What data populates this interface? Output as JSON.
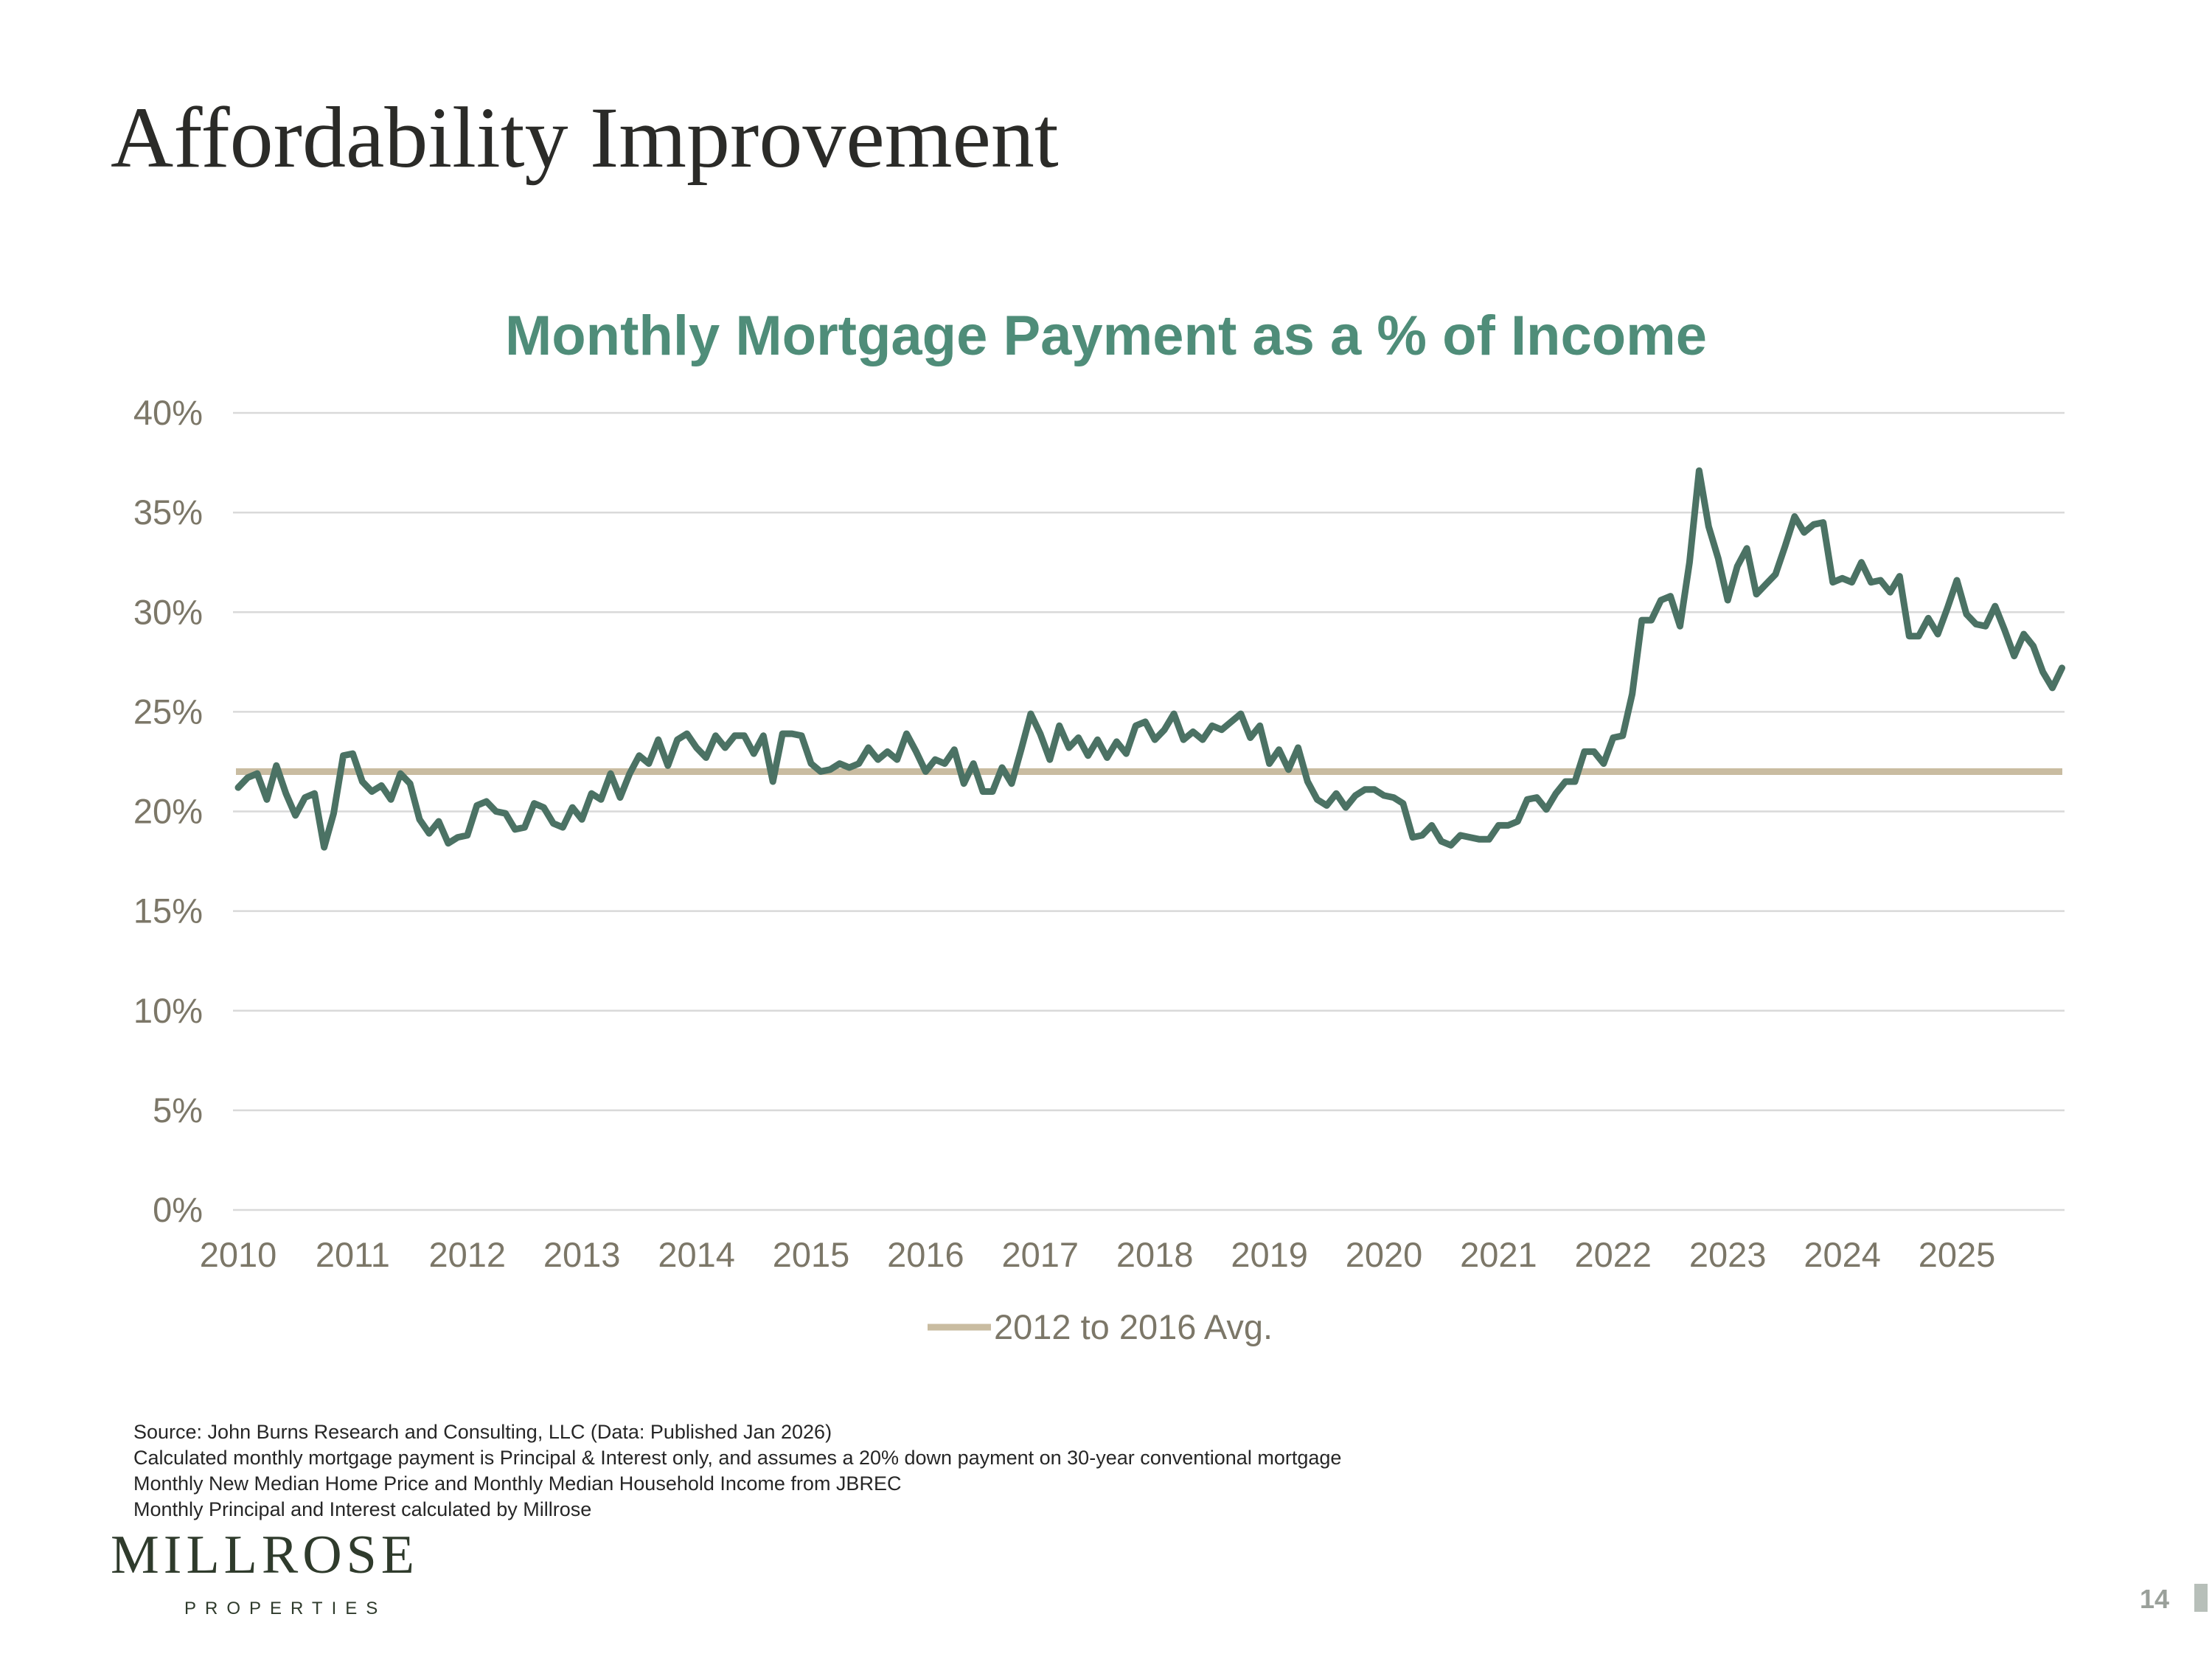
{
  "slide": {
    "title": "Affordability Improvement",
    "page_number": "14"
  },
  "footnotes": [
    "Source: John Burns Research and Consulting, LLC (Data: Published Jan 2026)",
    "Calculated monthly mortgage payment is Principal & Interest only, and assumes a 20% down payment on 30-year conventional mortgage",
    "Monthly New Median Home Price and Monthly Median Household Income from JBREC",
    "Monthly Principal and Interest calculated by Millrose"
  ],
  "logo": {
    "name": "MILLROSE",
    "sub": "PROPERTIES"
  },
  "colors": {
    "title_green": "#4f8d79",
    "series_line": "#4b7264",
    "avg_line": "#c9bca1",
    "grid": "#d9d9d9",
    "axis_text": "#7c7768"
  },
  "chart_data": {
    "type": "line",
    "title": "Monthly Mortgage Payment as a % of Income",
    "xlabel": "",
    "ylabel": "",
    "x_tick_labels": [
      "2010",
      "2011",
      "2012",
      "2013",
      "2014",
      "2015",
      "2016",
      "2017",
      "2018",
      "2019",
      "2020",
      "2021",
      "2022",
      "2023",
      "2024",
      "2025"
    ],
    "y_tick_labels": [
      "0%",
      "5%",
      "10%",
      "15%",
      "20%",
      "25%",
      "30%",
      "35%",
      "40%"
    ],
    "ylim": [
      0,
      40
    ],
    "x_start": "2010-01",
    "x_frequency": "monthly",
    "grid": true,
    "legend_position": "bottom",
    "series": [
      {
        "name": "",
        "role": "monthly_payment_pct_income",
        "values": [
          21.2,
          21.7,
          21.9,
          20.6,
          22.3,
          20.9,
          19.8,
          20.7,
          20.9,
          18.2,
          19.9,
          22.8,
          22.9,
          21.5,
          21.0,
          21.3,
          20.6,
          21.9,
          21.4,
          19.6,
          18.9,
          19.5,
          18.4,
          18.7,
          18.8,
          20.3,
          20.5,
          20.0,
          19.9,
          19.1,
          19.2,
          20.4,
          20.2,
          19.4,
          19.2,
          20.2,
          19.6,
          20.9,
          20.6,
          21.9,
          20.7,
          21.9,
          22.8,
          22.4,
          23.6,
          22.3,
          23.6,
          23.9,
          23.2,
          22.7,
          23.8,
          23.2,
          23.8,
          23.8,
          22.9,
          23.8,
          21.5,
          23.9,
          23.9,
          23.8,
          22.4,
          22.0,
          22.1,
          22.4,
          22.2,
          22.4,
          23.2,
          22.6,
          23.0,
          22.6,
          23.9,
          23.0,
          22.0,
          22.6,
          22.4,
          23.1,
          21.4,
          22.4,
          21.0,
          21.0,
          22.2,
          21.4,
          23.1,
          24.9,
          23.9,
          22.6,
          24.3,
          23.2,
          23.7,
          22.8,
          23.6,
          22.7,
          23.5,
          22.9,
          24.3,
          24.5,
          23.6,
          24.1,
          24.9,
          23.6,
          24.0,
          23.6,
          24.3,
          24.1,
          24.5,
          24.9,
          23.7,
          24.3,
          22.4,
          23.1,
          22.1,
          23.2,
          21.5,
          20.6,
          20.3,
          20.9,
          20.2,
          20.8,
          21.1,
          21.1,
          20.8,
          20.7,
          20.4,
          18.7,
          18.8,
          19.3,
          18.5,
          18.3,
          18.8,
          18.7,
          18.6,
          18.6,
          19.3,
          19.3,
          19.5,
          20.6,
          20.7,
          20.1,
          20.9,
          21.5,
          21.5,
          23.0,
          23.0,
          22.4,
          23.7,
          23.8,
          25.9,
          29.6,
          29.6,
          30.6,
          30.8,
          29.3,
          32.5,
          37.1,
          34.3,
          32.7,
          30.6,
          32.3,
          33.2,
          30.9,
          31.4,
          31.9,
          33.3,
          34.8,
          34.0,
          34.4,
          34.5,
          31.5,
          31.7,
          31.5,
          32.5,
          31.5,
          31.6,
          31.0,
          31.8,
          28.8,
          28.8,
          29.7,
          28.9,
          30.2,
          31.6,
          29.9,
          29.4,
          29.3,
          30.3,
          29.1,
          27.8,
          28.9,
          28.3,
          27.0,
          26.2,
          27.2
        ]
      },
      {
        "name": "2012 to 2016 Avg.",
        "values": [
          22.0
        ]
      }
    ]
  }
}
